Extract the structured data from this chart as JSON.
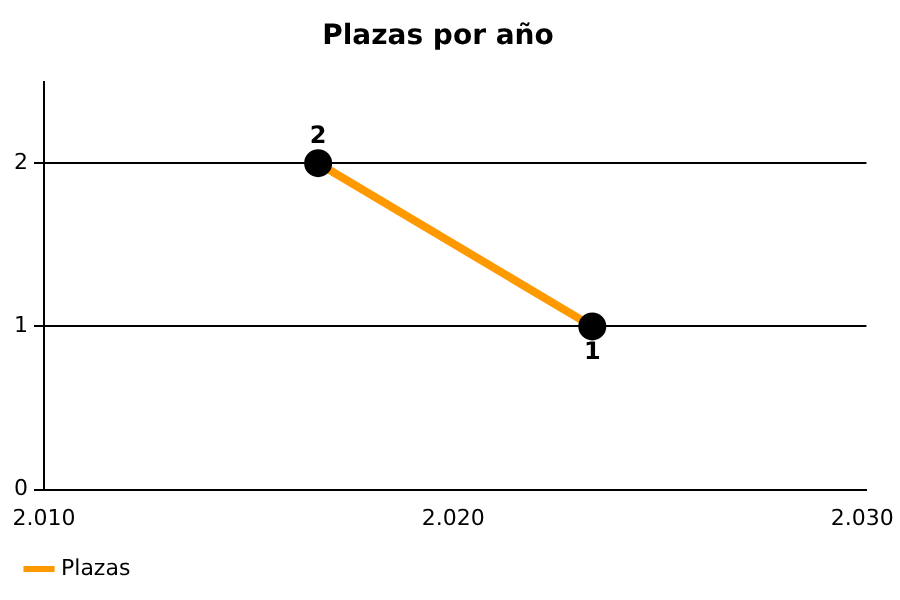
{
  "chart_data": {
    "type": "line",
    "title": "Plazas por año",
    "x": [
      2016.7,
      2023.4
    ],
    "series": [
      {
        "name": "Plazas",
        "color": "#ff9900",
        "values": [
          2,
          1
        ]
      }
    ],
    "xlim": [
      2010,
      2030.1
    ],
    "xticks": [
      {
        "value": 2010,
        "label": "2.010"
      },
      {
        "value": 2020,
        "label": "2.020"
      },
      {
        "value": 2030,
        "label": "2.030"
      }
    ],
    "ylim": [
      0,
      2.5
    ],
    "yticks": [
      0,
      1,
      2
    ],
    "grid": "y",
    "legend": "bottom left",
    "marker": "circle",
    "line_style": "solid",
    "data_labels": true
  }
}
